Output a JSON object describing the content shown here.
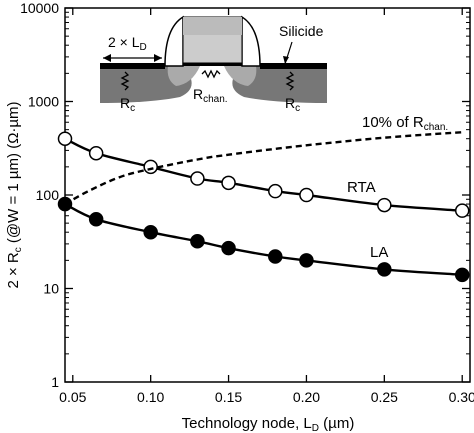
{
  "chart_data": {
    "type": "line",
    "xlabel": "Technology node, L",
    "xlabel_sub": "D",
    "xlabel_unit": " (µm)",
    "ylabel": "2 × R",
    "ylabel_sub": "c",
    "ylabel_rest": " (@W = 1 µm) (Ω·µm)",
    "xlim": [
      0.045,
      0.305
    ],
    "ylim": [
      1,
      10000
    ],
    "yscale": "log",
    "grid": false,
    "x_ticks": [
      0.05,
      0.1,
      0.15,
      0.2,
      0.25,
      0.3
    ],
    "x_tick_labels": [
      "0.05",
      "0.10",
      "0.15",
      "0.20",
      "0.25",
      "0.30"
    ],
    "y_ticks": [
      1,
      10,
      100,
      1000,
      10000
    ],
    "y_tick_labels": [
      "1",
      "10",
      "100",
      "1000",
      "10000"
    ],
    "series": [
      {
        "name": "RTA",
        "marker": "open-circle",
        "line": "solid",
        "x": [
          0.045,
          0.065,
          0.1,
          0.13,
          0.15,
          0.18,
          0.2,
          0.25,
          0.3
        ],
        "y": [
          400,
          280,
          200,
          150,
          135,
          110,
          100,
          78,
          68
        ]
      },
      {
        "name": "LA",
        "marker": "filled-circle",
        "line": "solid",
        "x": [
          0.045,
          0.065,
          0.1,
          0.13,
          0.15,
          0.18,
          0.2,
          0.25,
          0.3
        ],
        "y": [
          80,
          55,
          40,
          32,
          27,
          22,
          20,
          16,
          14
        ]
      },
      {
        "name": "10% of R",
        "name_sub": "chan.",
        "marker": "none",
        "line": "dashed",
        "x": [
          0.045,
          0.06,
          0.08,
          0.1,
          0.13,
          0.15,
          0.2,
          0.25,
          0.3
        ],
        "y": [
          80,
          110,
          155,
          190,
          240,
          270,
          340,
          410,
          470
        ]
      }
    ],
    "inset": {
      "label_ld": "2 × L",
      "label_ld_sub": "D",
      "label_silicide": "Silicide",
      "label_rc": "R",
      "label_rc_sub": "c",
      "label_rchan": "R",
      "label_rchan_sub": "chan."
    }
  }
}
